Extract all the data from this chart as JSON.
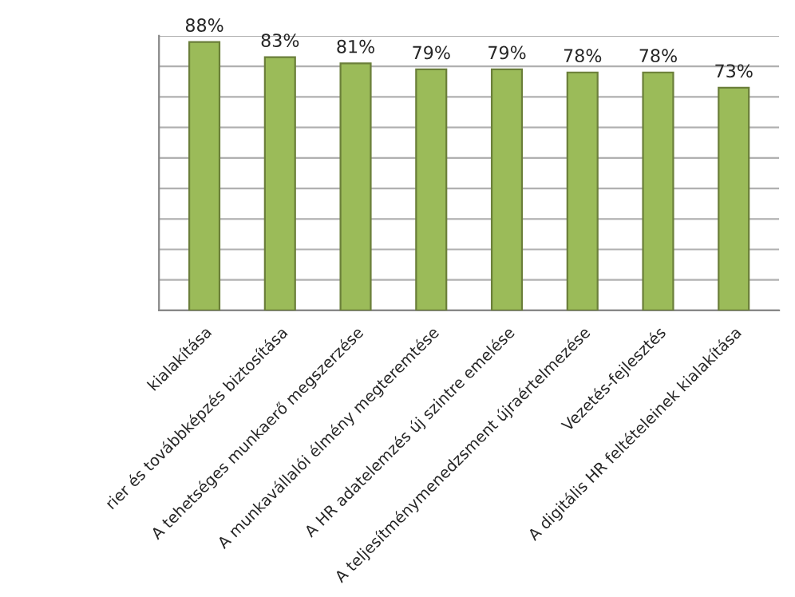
{
  "chart_data": {
    "type": "bar",
    "categories": [
      "kialakítása",
      "rier és továbbképzés biztosítása",
      "A tehetséges munkaerő megszerzése",
      "A munkavállalói élmény megteremtése",
      "A HR adatelemzés új szintre emelése",
      "A teljesítménymenedzsment újraértelmezése",
      "Vezetés-fejlesztés",
      "A digitális HR feltételeinek kialakítása"
    ],
    "values": [
      88,
      83,
      81,
      79,
      79,
      78,
      78,
      73
    ],
    "value_labels": [
      "88%",
      "83%",
      "81%",
      "79%",
      "79%",
      "78%",
      "78%",
      "73%"
    ],
    "color": "#9bbb59",
    "ylim": [
      0,
      90
    ],
    "yticks": [
      {
        "value": 0,
        "label": null
      },
      {
        "value": 10,
        "label": null
      },
      {
        "value": 20,
        "label": null
      },
      {
        "value": 30,
        "label": null
      },
      {
        "value": 40,
        "label": null
      },
      {
        "value": 50,
        "label": null
      },
      {
        "value": 60,
        "label": null
      },
      {
        "value": 70,
        "label": null
      },
      {
        "value": 80,
        "label": null
      },
      {
        "value": 90,
        "label": null
      }
    ],
    "grid": "y",
    "tick_labels": "x"
  }
}
